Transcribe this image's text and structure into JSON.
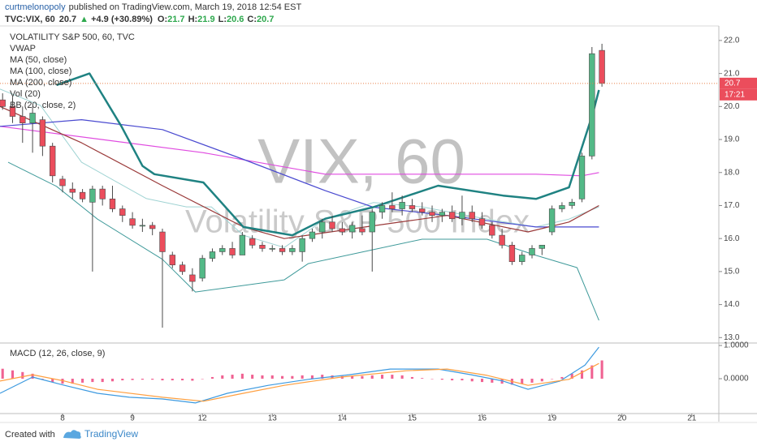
{
  "header": {
    "author": "curtmelonopoly",
    "published": "published on TradingView.com, March 19, 2018 12:54 EST",
    "symbol": "TVC:VIX, 60",
    "last": "20.7",
    "arrow": "▲",
    "change": "+4.9 (+30.89%)",
    "ohlc": [
      {
        "label": "O:",
        "value": "21.7"
      },
      {
        "label": "H:",
        "value": "21.9"
      },
      {
        "label": "L:",
        "value": "20.6"
      },
      {
        "label": "C:",
        "value": "20.7"
      }
    ]
  },
  "footer": {
    "created": "Created with",
    "brand": "TradingView"
  },
  "chart_data": [
    {
      "type": "candlestick",
      "title": "VOLATILITY S&P 500, 60, TVC",
      "legend": [
        "VWAP",
        "MA (50, close)",
        "MA (100, close)",
        "MA (200, close)",
        "Vol (20)",
        "BB (20, close, 2)"
      ],
      "watermark": "VIX, 60",
      "watermark_subtitle": "Volatility S&P 500 Index",
      "price_label": "20.7",
      "countdown": "17:21",
      "up_color": "#53b987",
      "down_color": "#eb4d5c",
      "last_line_color": "#e8804a",
      "x": [
        1,
        2,
        3,
        4,
        5,
        6,
        7,
        8,
        9,
        10,
        11,
        12,
        13,
        14,
        15,
        16,
        17,
        18,
        19,
        20,
        21,
        22,
        23,
        24,
        25,
        26,
        27,
        28,
        29,
        30,
        31,
        32,
        33,
        34,
        35,
        36,
        37,
        38,
        39,
        40,
        41,
        42,
        43,
        44,
        45,
        46,
        47,
        48,
        49,
        50,
        51,
        52,
        53,
        54,
        55,
        56,
        57,
        58,
        59,
        60,
        61
      ],
      "open": [
        20.2,
        20.0,
        19.7,
        19.5,
        19.6,
        18.8,
        17.8,
        17.5,
        17.4,
        17.1,
        17.5,
        17.2,
        16.9,
        16.6,
        16.4,
        16.4,
        16.2,
        15.5,
        15.2,
        14.9,
        14.8,
        15.4,
        15.6,
        15.7,
        15.5,
        16.0,
        15.8,
        15.7,
        15.7,
        15.6,
        15.6,
        16.0,
        16.2,
        16.5,
        16.3,
        16.2,
        16.3,
        16.2,
        16.8,
        17.0,
        16.9,
        17.0,
        16.9,
        16.8,
        16.7,
        16.8,
        16.6,
        16.8,
        16.6,
        16.4,
        16.1,
        15.8,
        15.3,
        15.5,
        15.7,
        16.2,
        16.9,
        17.0,
        17.2,
        18.5,
        21.7
      ],
      "high": [
        20.4,
        20.3,
        20.0,
        20.0,
        19.7,
        18.9,
        17.9,
        17.7,
        17.5,
        17.6,
        17.6,
        17.6,
        17.0,
        16.8,
        16.6,
        16.5,
        16.3,
        15.6,
        15.3,
        15.1,
        15.5,
        15.7,
        15.8,
        15.9,
        16.2,
        16.1,
        15.9,
        15.8,
        15.8,
        15.8,
        16.1,
        16.3,
        16.6,
        16.7,
        16.5,
        16.5,
        16.7,
        16.9,
        17.1,
        17.4,
        17.3,
        17.2,
        17.1,
        17.0,
        16.9,
        17.0,
        17.3,
        17.0,
        16.8,
        16.5,
        16.3,
        15.9,
        15.6,
        15.8,
        15.8,
        17.0,
        17.1,
        17.2,
        18.6,
        21.8,
        21.9
      ],
      "low": [
        19.9,
        19.5,
        18.9,
        18.6,
        18.5,
        17.7,
        17.4,
        17.2,
        17.1,
        15.0,
        17.0,
        16.8,
        16.5,
        16.3,
        16.2,
        16.1,
        13.3,
        15.1,
        14.9,
        14.4,
        14.7,
        15.3,
        15.5,
        15.4,
        15.5,
        15.7,
        15.6,
        15.6,
        15.5,
        15.5,
        15.3,
        15.9,
        16.0,
        16.2,
        16.1,
        16.0,
        16.1,
        15.0,
        16.6,
        16.8,
        16.7,
        16.8,
        16.7,
        16.5,
        16.5,
        16.5,
        16.4,
        16.5,
        16.3,
        16.0,
        15.7,
        15.2,
        15.2,
        15.4,
        15.5,
        16.1,
        16.8,
        16.9,
        17.1,
        18.4,
        20.6
      ],
      "close": [
        20.0,
        19.7,
        19.5,
        19.8,
        18.8,
        17.9,
        17.6,
        17.4,
        17.2,
        17.5,
        17.2,
        16.9,
        16.7,
        16.4,
        16.4,
        16.3,
        15.6,
        15.2,
        15.0,
        14.7,
        15.4,
        15.6,
        15.7,
        15.5,
        16.1,
        15.8,
        15.7,
        15.7,
        15.6,
        15.7,
        16.0,
        16.2,
        16.5,
        16.3,
        16.2,
        16.4,
        16.2,
        16.8,
        17.0,
        16.9,
        17.1,
        16.9,
        16.8,
        16.7,
        16.8,
        16.6,
        16.8,
        16.6,
        16.4,
        16.1,
        15.8,
        15.3,
        15.5,
        15.7,
        15.8,
        16.9,
        17.0,
        17.1,
        18.5,
        21.6,
        20.7
      ],
      "indicators": [
        {
          "color": "#9fd3d3",
          "width": 1,
          "x": [
            0.74,
            4.8,
            8.9,
            15.4,
            19.4,
            21.9,
            25.1,
            29.2,
            33.3,
            38.1,
            43.0,
            49.5,
            54.4,
            57.7,
            60.7
          ],
          "values": [
            20.53,
            20.03,
            18.31,
            17.21,
            16.96,
            16.96,
            16.1,
            15.73,
            16.59,
            17.09,
            16.96,
            16.59,
            16.35,
            16.59,
            16.96
          ]
        },
        {
          "color": "#3f9a9a",
          "width": 1,
          "x": [
            1.55,
            6.4,
            10.5,
            17.0,
            20.3,
            23.5,
            29.2,
            31.6,
            37.3,
            43.0,
            49.5,
            54.4,
            58.5,
            60.7
          ],
          "values": [
            18.31,
            17.58,
            16.59,
            15.37,
            14.38,
            14.51,
            14.75,
            15.24,
            15.61,
            15.98,
            15.98,
            15.49,
            15.12,
            13.52
          ]
        },
        {
          "color": "#e04be0",
          "width": 1.2,
          "x": [
            0.74,
            21.1,
            33.3,
            54.4,
            59.0,
            60.7
          ],
          "values": [
            19.4,
            18.6,
            17.95,
            17.95,
            17.9,
            18.0
          ]
        },
        {
          "color": "#4a4ad0",
          "width": 1.2,
          "x": [
            0.74,
            8.9,
            17.0,
            25.1,
            33.3,
            38.1,
            45.5,
            54.4,
            60.7
          ],
          "values": [
            19.4,
            19.6,
            19.3,
            18.4,
            17.45,
            16.95,
            16.7,
            16.35,
            16.35
          ]
        },
        {
          "color": "#9a3a3a",
          "width": 1.2,
          "x": [
            0.74,
            8.9,
            17.0,
            25.1,
            29.2,
            37.3,
            45.5,
            53.6,
            57.7,
            60.7
          ],
          "values": [
            20.0,
            18.9,
            17.6,
            16.35,
            16.0,
            16.35,
            16.7,
            16.2,
            16.5,
            17.0
          ]
        },
        {
          "color": "#1f8282",
          "width": 2.5,
          "x": [
            6.4,
            9.7,
            12.9,
            15.0,
            16.2,
            21.1,
            25.1,
            30.0,
            33.3,
            38.1,
            44.6,
            51.1,
            54.4,
            57.7,
            60.1,
            60.7
          ],
          "values": [
            20.65,
            21.0,
            19.4,
            18.2,
            17.95,
            17.7,
            16.35,
            16.1,
            16.6,
            16.95,
            17.6,
            17.3,
            17.2,
            17.55,
            19.8,
            20.5
          ]
        }
      ],
      "xlim": [
        0.74,
        72.7
      ],
      "xticks": [
        {
          "value": 7,
          "label": "8"
        },
        {
          "value": 14,
          "label": "9"
        },
        {
          "value": 21,
          "label": "12"
        },
        {
          "value": 28,
          "label": "13"
        },
        {
          "value": 35,
          "label": "14"
        },
        {
          "value": 42,
          "label": "15"
        },
        {
          "value": 49,
          "label": "16"
        },
        {
          "value": 56,
          "label": "19"
        },
        {
          "value": 63,
          "label": "20"
        },
        {
          "value": 70,
          "label": "21"
        }
      ],
      "ylim": [
        12.86,
        22.44
      ],
      "yticks": [
        {
          "value": 13,
          "label": "13.0"
        },
        {
          "value": 14,
          "label": "14.0"
        },
        {
          "value": 15,
          "label": "15.0"
        },
        {
          "value": 16,
          "label": "16.0"
        },
        {
          "value": 17,
          "label": "17.0"
        },
        {
          "value": 18,
          "label": "18.0"
        },
        {
          "value": 19,
          "label": "19.0"
        },
        {
          "value": 20,
          "label": "20.0"
        },
        {
          "value": 21,
          "label": "21.0"
        },
        {
          "value": 22,
          "label": "22.0"
        }
      ]
    },
    {
      "type": "macd",
      "title": "MACD (12, 26, close, 9)",
      "histogram_color": "#f06292",
      "histogram": [
        0.3,
        0.25,
        0.2,
        0.15,
        0.0,
        -0.1,
        -0.15,
        -0.15,
        -0.12,
        -0.1,
        -0.1,
        -0.08,
        -0.05,
        -0.04,
        -0.03,
        -0.03,
        -0.05,
        -0.05,
        -0.05,
        -0.06,
        0.0,
        0.05,
        0.1,
        0.12,
        0.15,
        0.12,
        0.1,
        0.1,
        0.08,
        0.08,
        0.1,
        0.1,
        0.12,
        0.1,
        0.08,
        0.08,
        0.08,
        0.1,
        0.12,
        0.12,
        0.1,
        0.05,
        0.02,
        0.0,
        -0.03,
        -0.05,
        -0.05,
        -0.08,
        -0.1,
        -0.12,
        -0.15,
        -0.18,
        -0.15,
        -0.12,
        -0.08,
        0.0,
        0.05,
        0.15,
        0.25,
        0.4,
        0.55
      ],
      "lines": [
        {
          "color": "#3d9ae0",
          "x": [
            0.74,
            4.0,
            7.2,
            10.5,
            13.7,
            17.0,
            20.3,
            23.5,
            27.6,
            31.6,
            35.7,
            39.8,
            44.6,
            47.9,
            51.1,
            53.6,
            56.8,
            59.3,
            60.7
          ],
          "values": [
            -0.44,
            0.05,
            -0.2,
            -0.44,
            -0.56,
            -0.61,
            -0.73,
            -0.44,
            -0.2,
            -0.02,
            0.12,
            0.29,
            0.29,
            0.12,
            -0.07,
            -0.32,
            -0.07,
            0.41,
            0.95
          ]
        },
        {
          "color": "#ff9f40",
          "x": [
            0.74,
            4.0,
            7.2,
            10.5,
            17.0,
            21.1,
            25.1,
            29.2,
            34.9,
            41.4,
            45.5,
            49.5,
            53.6,
            57.7,
            60.7
          ],
          "values": [
            -0.07,
            0.12,
            -0.07,
            -0.32,
            -0.56,
            -0.68,
            -0.44,
            -0.2,
            0.05,
            0.24,
            0.29,
            0.1,
            -0.2,
            -0.02,
            0.46
          ]
        }
      ],
      "ylim": [
        -1.05,
        1.05
      ],
      "yticks": [
        {
          "value": 1,
          "label": "1.0000"
        },
        {
          "value": 0,
          "label": "0.0000"
        }
      ]
    }
  ]
}
